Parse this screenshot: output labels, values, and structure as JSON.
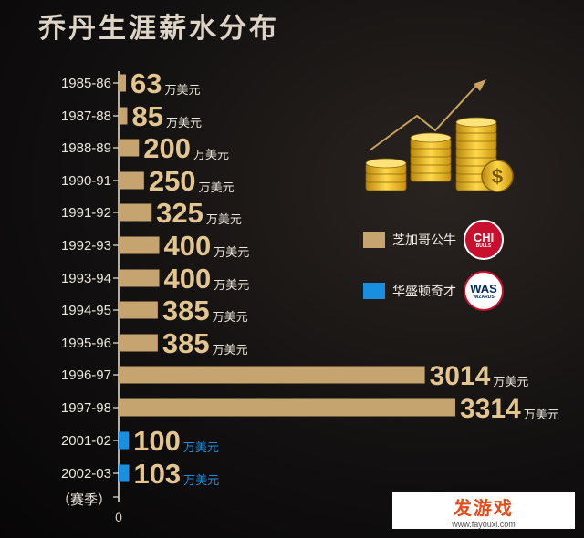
{
  "chart_data": {
    "type": "bar",
    "orientation": "horizontal",
    "title": "乔丹生涯薪水分布",
    "categories": [
      "1985-86",
      "1987-88",
      "1988-89",
      "1990-91",
      "1991-92",
      "1992-93",
      "1993-94",
      "1994-95",
      "1995-96",
      "1996-97",
      "1997-98",
      "2001-02",
      "2002-03"
    ],
    "values": [
      63,
      85,
      200,
      250,
      325,
      400,
      400,
      385,
      385,
      3014,
      3314,
      100,
      103
    ],
    "value_labels": [
      "63",
      "85",
      "200",
      "250",
      "325",
      "400",
      "400",
      "385",
      "385",
      "3014",
      "3314",
      "100",
      "103"
    ],
    "team": [
      "CHI",
      "CHI",
      "CHI",
      "CHI",
      "CHI",
      "CHI",
      "CHI",
      "CHI",
      "CHI",
      "CHI",
      "CHI",
      "WAS",
      "WAS"
    ],
    "unit_label": "万美元",
    "ylabel": "（赛季）",
    "x_origin_label": "0",
    "legend": [
      {
        "team": "CHI",
        "label": "芝加哥公牛",
        "color": "#c6a46f",
        "badge": "CHI",
        "badge_sub": "BULLS"
      },
      {
        "team": "WAS",
        "label": "华盛顿奇才",
        "color": "#1a8fe0",
        "badge": "WAS",
        "badge_sub": "WIZARDS"
      }
    ],
    "legend_position": "right"
  },
  "watermark": {
    "name": "发游戏",
    "url": "www.fayouxi.com"
  }
}
